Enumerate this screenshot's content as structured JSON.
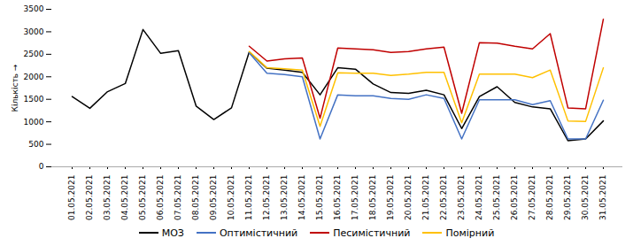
{
  "chart_data": {
    "type": "line",
    "ylabel": "Кількість",
    "categories": [
      "01.05.2021",
      "02.05.2021",
      "03.05.2021",
      "04.05.2021",
      "05.05.2021",
      "06.05.2021",
      "07.05.2021",
      "08.05.2021",
      "09.05.2021",
      "10.05.2021",
      "11.05.2021",
      "12.05.2021",
      "13.05.2021",
      "14.05.2021",
      "15.05.2021",
      "16.05.2021",
      "17.05.2021",
      "18.05.2021",
      "19.05.2021",
      "20.05.2021",
      "21.05.2021",
      "22.05.2021",
      "23.05.2021",
      "24.05.2021",
      "25.05.2021",
      "26.05.2021",
      "27.05.2021",
      "28.05.2021",
      "29.05.2021",
      "30.05.2021",
      "31.05.2021"
    ],
    "series": [
      {
        "name": "МОЗ",
        "color": "#000000",
        "values": [
          1560,
          1300,
          1670,
          1850,
          3050,
          2520,
          2580,
          1350,
          1050,
          1310,
          2550,
          2190,
          2150,
          2100,
          1600,
          2200,
          2170,
          1840,
          1650,
          1630,
          1700,
          1600,
          850,
          1560,
          1780,
          1430,
          1330,
          1290,
          580,
          620,
          1020
        ]
      },
      {
        "name": "Оптимістичний",
        "color": "#4472C4",
        "values": [
          null,
          null,
          null,
          null,
          null,
          null,
          null,
          null,
          null,
          null,
          2530,
          2080,
          2050,
          2000,
          620,
          1600,
          1580,
          1580,
          1520,
          1500,
          1600,
          1520,
          620,
          1490,
          1490,
          1490,
          1380,
          1470,
          620,
          620,
          1480
        ]
      },
      {
        "name": "Песимістичний",
        "color": "#C00000",
        "values": [
          null,
          null,
          null,
          null,
          null,
          null,
          null,
          null,
          null,
          null,
          2680,
          2350,
          2400,
          2420,
          1080,
          2640,
          2620,
          2600,
          2540,
          2560,
          2620,
          2660,
          1190,
          2760,
          2750,
          2680,
          2620,
          2960,
          1310,
          1290,
          3280
        ]
      },
      {
        "name": "Помірний",
        "color": "#FFC000",
        "values": [
          null,
          null,
          null,
          null,
          null,
          null,
          null,
          null,
          null,
          null,
          2560,
          2200,
          2180,
          2150,
          900,
          2090,
          2080,
          2080,
          2030,
          2060,
          2100,
          2100,
          980,
          2060,
          2060,
          2060,
          1980,
          2150,
          1020,
          1010,
          2200
        ]
      }
    ],
    "ylim": [
      0,
      3500
    ],
    "yticks": [
      0,
      500,
      1000,
      1500,
      2000,
      2500,
      3000,
      3500
    ],
    "grid": false,
    "legend": "bottom"
  }
}
